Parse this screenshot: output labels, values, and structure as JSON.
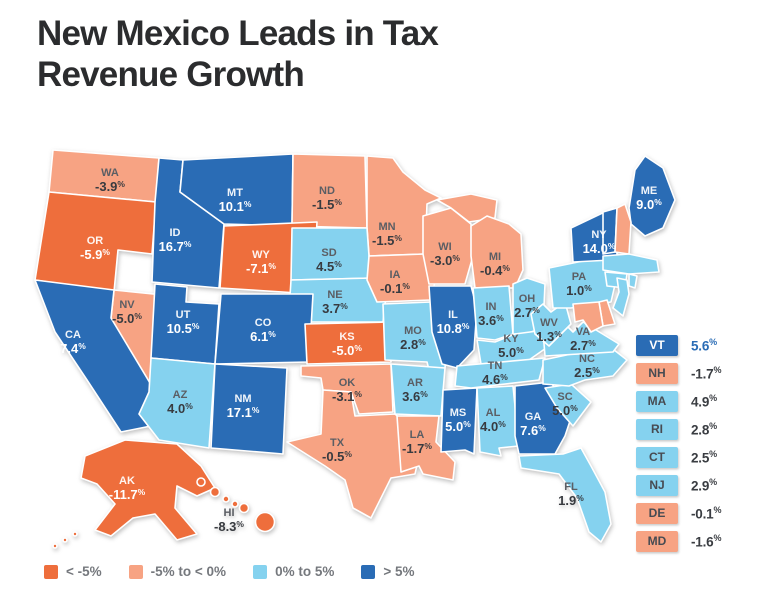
{
  "title": "New Mexico Leads in Tax Revenue Growth",
  "colors": {
    "lt_neg5": "#ee6e3c",
    "neg5_to_0": "#f7a383",
    "zero_to_5": "#85d2ef",
    "gt_5": "#2a6cb5",
    "map_border": "#ffffff",
    "title_text": "#2b2c2e",
    "legend_text": "#75787d",
    "panel_value_text": "#3a3d42",
    "panel_value_highlight": "#2a6cb5"
  },
  "legend": {
    "items": [
      {
        "label": "< -5%",
        "category": "lt_neg5"
      },
      {
        "label": "-5% to < 0%",
        "category": "neg5_to_0"
      },
      {
        "label": "0% to 5%",
        "category": "zero_to_5"
      },
      {
        "label": "> 5%",
        "category": "gt_5"
      }
    ]
  },
  "chart_data": {
    "type": "choropleth-map",
    "title": "New Mexico Leads in Tax Revenue Growth",
    "unit": "%",
    "buckets": [
      "< -5%",
      "-5% to < 0%",
      "0% to 5%",
      "> 5%"
    ],
    "legend_position": "bottom",
    "states": [
      {
        "abbr": "WA",
        "value": -3.9,
        "display": "-3.9",
        "category": "neg5_to_0",
        "location": "map"
      },
      {
        "abbr": "OR",
        "value": -5.9,
        "display": "-5.9",
        "category": "lt_neg5",
        "location": "map"
      },
      {
        "abbr": "CA",
        "value": 7.4,
        "display": "7.4",
        "category": "gt_5",
        "location": "map"
      },
      {
        "abbr": "NV",
        "value": -5.0,
        "display": "-5.0",
        "category": "neg5_to_0",
        "location": "map"
      },
      {
        "abbr": "ID",
        "value": 16.7,
        "display": "16.7",
        "category": "gt_5",
        "location": "map"
      },
      {
        "abbr": "MT",
        "value": 10.1,
        "display": "10.1",
        "category": "gt_5",
        "location": "map"
      },
      {
        "abbr": "WY",
        "value": -7.1,
        "display": "-7.1",
        "category": "lt_neg5",
        "location": "map"
      },
      {
        "abbr": "UT",
        "value": 10.5,
        "display": "10.5",
        "category": "gt_5",
        "location": "map"
      },
      {
        "abbr": "CO",
        "value": 6.1,
        "display": "6.1",
        "category": "gt_5",
        "location": "map"
      },
      {
        "abbr": "AZ",
        "value": 4.0,
        "display": "4.0",
        "category": "zero_to_5",
        "location": "map"
      },
      {
        "abbr": "NM",
        "value": 17.1,
        "display": "17.1",
        "category": "gt_5",
        "location": "map"
      },
      {
        "abbr": "ND",
        "value": -1.5,
        "display": "-1.5",
        "category": "neg5_to_0",
        "location": "map"
      },
      {
        "abbr": "SD",
        "value": 4.5,
        "display": "4.5",
        "category": "zero_to_5",
        "location": "map"
      },
      {
        "abbr": "NE",
        "value": 3.7,
        "display": "3.7",
        "category": "zero_to_5",
        "location": "map"
      },
      {
        "abbr": "KS",
        "value": -5.0,
        "display": "-5.0",
        "category": "lt_neg5",
        "location": "map"
      },
      {
        "abbr": "OK",
        "value": -3.1,
        "display": "-3.1",
        "category": "neg5_to_0",
        "location": "map"
      },
      {
        "abbr": "TX",
        "value": -0.5,
        "display": "-0.5",
        "category": "neg5_to_0",
        "location": "map"
      },
      {
        "abbr": "MN",
        "value": -1.5,
        "display": "-1.5",
        "category": "neg5_to_0",
        "location": "map"
      },
      {
        "abbr": "IA",
        "value": -0.1,
        "display": "-0.1",
        "category": "neg5_to_0",
        "location": "map"
      },
      {
        "abbr": "MO",
        "value": 2.8,
        "display": "2.8",
        "category": "zero_to_5",
        "location": "map"
      },
      {
        "abbr": "AR",
        "value": 3.6,
        "display": "3.6",
        "category": "zero_to_5",
        "location": "map"
      },
      {
        "abbr": "LA",
        "value": -1.7,
        "display": "-1.7",
        "category": "neg5_to_0",
        "location": "map"
      },
      {
        "abbr": "WI",
        "value": -3.0,
        "display": "-3.0",
        "category": "neg5_to_0",
        "location": "map"
      },
      {
        "abbr": "IL",
        "value": 10.8,
        "display": "10.8",
        "category": "gt_5",
        "location": "map"
      },
      {
        "abbr": "MS",
        "value": 5.0,
        "display": "5.0",
        "category": "gt_5",
        "location": "map"
      },
      {
        "abbr": "MI",
        "value": -0.4,
        "display": "-0.4",
        "category": "neg5_to_0",
        "location": "map"
      },
      {
        "abbr": "IN",
        "value": 3.6,
        "display": "3.6",
        "category": "zero_to_5",
        "location": "map"
      },
      {
        "abbr": "OH",
        "value": 2.7,
        "display": "2.7",
        "category": "zero_to_5",
        "location": "map"
      },
      {
        "abbr": "KY",
        "value": 5.0,
        "display": "5.0",
        "category": "zero_to_5",
        "location": "map"
      },
      {
        "abbr": "TN",
        "value": 4.6,
        "display": "4.6",
        "category": "zero_to_5",
        "location": "map"
      },
      {
        "abbr": "AL",
        "value": 4.0,
        "display": "4.0",
        "category": "zero_to_5",
        "location": "map"
      },
      {
        "abbr": "GA",
        "value": 7.6,
        "display": "7.6",
        "category": "gt_5",
        "location": "map"
      },
      {
        "abbr": "FL",
        "value": 1.9,
        "display": "1.9",
        "category": "zero_to_5",
        "location": "map"
      },
      {
        "abbr": "SC",
        "value": 5.0,
        "display": "5.0",
        "category": "zero_to_5",
        "location": "map"
      },
      {
        "abbr": "NC",
        "value": 2.5,
        "display": "2.5",
        "category": "zero_to_5",
        "location": "map"
      },
      {
        "abbr": "VA",
        "value": 2.7,
        "display": "2.7",
        "category": "zero_to_5",
        "location": "map"
      },
      {
        "abbr": "WV",
        "value": 1.3,
        "display": "1.3",
        "category": "zero_to_5",
        "location": "map"
      },
      {
        "abbr": "PA",
        "value": 1.0,
        "display": "1.0",
        "category": "zero_to_5",
        "location": "map"
      },
      {
        "abbr": "NY",
        "value": 14.0,
        "display": "14.0",
        "category": "gt_5",
        "location": "map"
      },
      {
        "abbr": "ME",
        "value": 9.0,
        "display": "9.0",
        "category": "gt_5",
        "location": "map"
      },
      {
        "abbr": "AK",
        "value": -11.7,
        "display": "-11.7",
        "category": "lt_neg5",
        "location": "map"
      },
      {
        "abbr": "HI",
        "value": -8.3,
        "display": "-8.3",
        "category": "lt_neg5",
        "location": "map"
      },
      {
        "abbr": "VT",
        "value": 5.6,
        "display": "5.6",
        "category": "gt_5",
        "location": "side_panel",
        "highlight": true
      },
      {
        "abbr": "NH",
        "value": -1.7,
        "display": "-1.7",
        "category": "neg5_to_0",
        "location": "side_panel"
      },
      {
        "abbr": "MA",
        "value": 4.9,
        "display": "4.9",
        "category": "zero_to_5",
        "location": "side_panel"
      },
      {
        "abbr": "RI",
        "value": 2.8,
        "display": "2.8",
        "category": "zero_to_5",
        "location": "side_panel"
      },
      {
        "abbr": "CT",
        "value": 2.5,
        "display": "2.5",
        "category": "zero_to_5",
        "location": "side_panel"
      },
      {
        "abbr": "NJ",
        "value": 2.9,
        "display": "2.9",
        "category": "zero_to_5",
        "location": "side_panel"
      },
      {
        "abbr": "DE",
        "value": -0.1,
        "display": "-0.1",
        "category": "neg5_to_0",
        "location": "side_panel"
      },
      {
        "abbr": "MD",
        "value": -1.6,
        "display": "-1.6",
        "category": "neg5_to_0",
        "location": "side_panel"
      }
    ]
  }
}
